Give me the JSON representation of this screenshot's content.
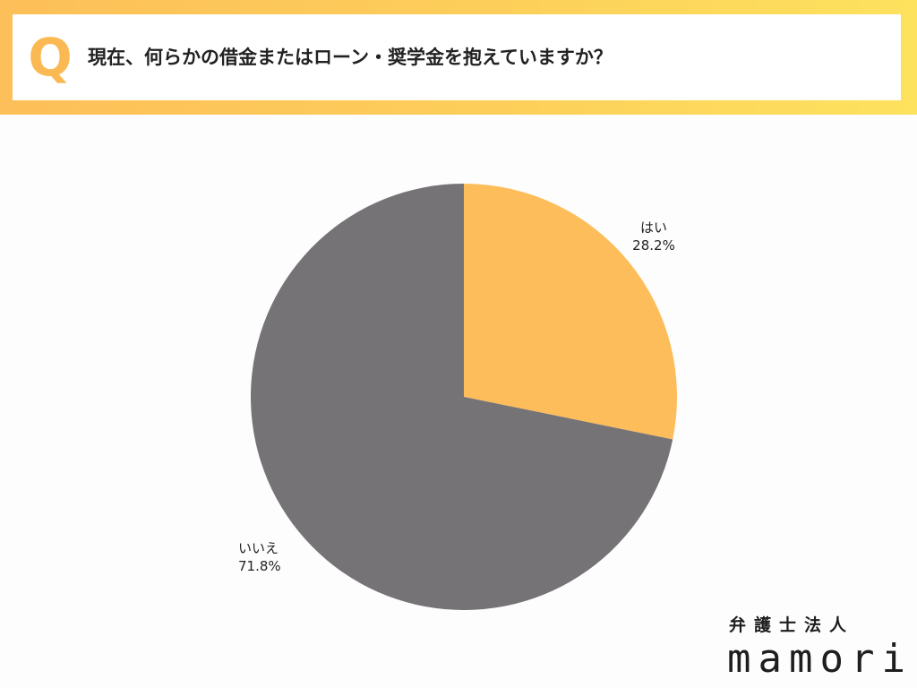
{
  "header": {
    "q_mark": "Q",
    "question": "現在、何らかの借金またはローン・奨学金を抱えていますか？"
  },
  "chart_data": {
    "type": "pie",
    "title": "",
    "slices": [
      {
        "label": "はい",
        "value": 28.2,
        "display": "28.2%",
        "color": "#fdbd5b"
      },
      {
        "label": "いいえ",
        "value": 71.8,
        "display": "71.8%",
        "color": "#757376"
      }
    ],
    "start": "12 o'clock",
    "direction": "clockwise",
    "legend": "none"
  },
  "branding": {
    "subtitle": "弁護士法人",
    "name": "mamori"
  },
  "colors": {
    "accent": "#fbb953",
    "header_gradient_start": "#fdbf59",
    "header_gradient_end": "#fde25e"
  }
}
